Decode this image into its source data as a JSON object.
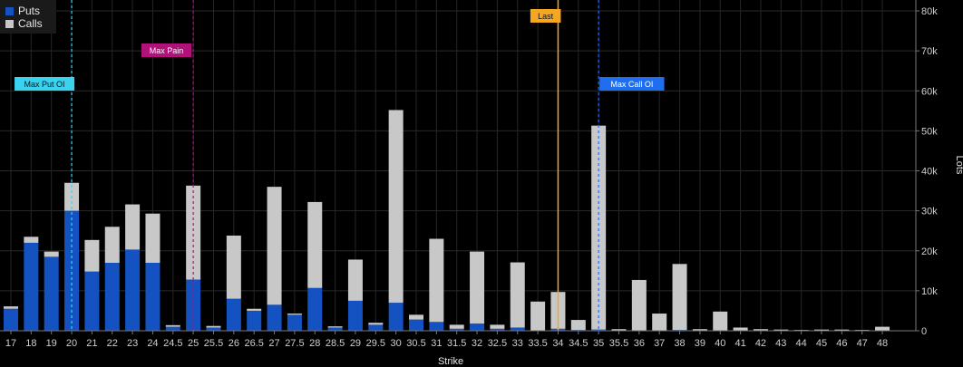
{
  "chart_data": {
    "type": "bar",
    "stacked": true,
    "xlabel": "Strike",
    "ylabel": "Lots",
    "ylim": [
      0,
      80000
    ],
    "yticks": [
      "0",
      "10k",
      "20k",
      "30k",
      "40k",
      "50k",
      "60k",
      "70k",
      "80k"
    ],
    "ytick_values": [
      0,
      10000,
      20000,
      30000,
      40000,
      50000,
      60000,
      70000,
      80000
    ],
    "grid": true,
    "legend_position": "top-left",
    "categories": [
      "17",
      "18",
      "19",
      "20",
      "21",
      "22",
      "23",
      "24",
      "24.5",
      "25",
      "25.5",
      "26",
      "26.5",
      "27",
      "27.5",
      "28",
      "28.5",
      "29",
      "29.5",
      "30",
      "30.5",
      "31",
      "31.5",
      "32",
      "32.5",
      "33",
      "33.5",
      "34",
      "34.5",
      "35",
      "35.5",
      "36",
      "37",
      "38",
      "39",
      "40",
      "41",
      "42",
      "43",
      "44",
      "45",
      "46",
      "47",
      "48"
    ],
    "series": [
      {
        "name": "Puts",
        "color": "#1452c2",
        "values": [
          5500,
          22000,
          18500,
          30000,
          14800,
          17000,
          20300,
          17000,
          1000,
          12800,
          800,
          8000,
          5000,
          6500,
          4000,
          10700,
          800,
          7500,
          1500,
          7000,
          2800,
          2200,
          500,
          1800,
          500,
          800,
          0,
          500,
          200,
          300,
          0,
          0,
          0,
          200,
          0,
          0,
          0,
          0,
          0,
          0,
          0,
          0,
          0,
          0
        ]
      },
      {
        "name": "Calls",
        "color": "#c8c8c8",
        "values": [
          600,
          1500,
          1300,
          7000,
          7900,
          9000,
          11300,
          12300,
          400,
          23500,
          400,
          15800,
          500,
          29500,
          300,
          21500,
          300,
          10300,
          500,
          48200,
          1200,
          20800,
          1000,
          18000,
          1000,
          16300,
          7300,
          9200,
          2500,
          51000,
          400,
          12700,
          4300,
          16500,
          400,
          4800,
          800,
          400,
          300,
          200,
          300,
          300,
          200,
          1000
        ]
      }
    ],
    "markers": [
      {
        "label": "Max Put OI",
        "strike": "20",
        "color": "#39d3f0",
        "text_color": "#111"
      },
      {
        "label": "Max Pain",
        "strike": "25",
        "color": "#b0127a",
        "text_color": "#fff"
      },
      {
        "label": "Last",
        "strike": "34",
        "color": "#f5a623",
        "text_color": "#111"
      },
      {
        "label": "Max Call OI",
        "strike": "35",
        "color": "#1f6ef0",
        "text_color": "#fff"
      }
    ]
  }
}
